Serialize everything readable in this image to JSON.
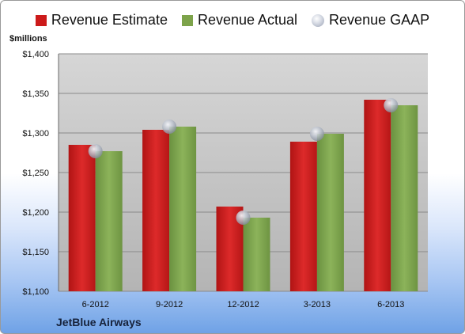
{
  "legend": {
    "estimate": "Revenue Estimate",
    "actual": "Revenue Actual",
    "gaap": "Revenue GAAP"
  },
  "unit_label": "$millions",
  "company": "JetBlue Airways",
  "chart_data": {
    "type": "bar",
    "categories": [
      "6-2012",
      "9-2012",
      "12-2012",
      "3-2013",
      "6-2013"
    ],
    "series": [
      {
        "name": "Revenue Estimate",
        "color": "#cc1a1a",
        "values": [
          1285,
          1304,
          1207,
          1289,
          1342
        ]
      },
      {
        "name": "Revenue Actual",
        "color": "#7da34a",
        "values": [
          1277,
          1308,
          1193,
          1299,
          1335
        ]
      },
      {
        "name": "Revenue GAAP",
        "type": "scatter",
        "color": "#c4c9d3",
        "values": [
          1277,
          1308,
          1193,
          1299,
          1335
        ]
      }
    ],
    "ylim": [
      1100,
      1400
    ],
    "yticks": [
      1100,
      1150,
      1200,
      1250,
      1300,
      1350,
      1400
    ],
    "ytick_labels": [
      "$1,100",
      "$1,150",
      "$1,200",
      "$1,250",
      "$1,300",
      "$1,350",
      "$1,400"
    ],
    "grid": true,
    "legend_position": "top"
  }
}
